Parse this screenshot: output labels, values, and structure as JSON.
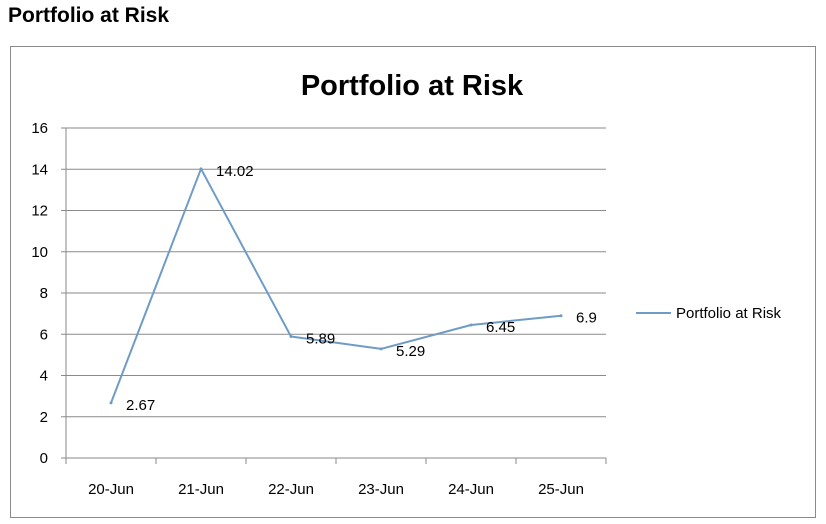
{
  "page": {
    "heading": "Portfolio at Risk"
  },
  "chart_data": {
    "type": "line",
    "title": "Portfolio at Risk",
    "xlabel": "",
    "ylabel": "",
    "categories": [
      "20-Jun",
      "21-Jun",
      "22-Jun",
      "23-Jun",
      "24-Jun",
      "25-Jun"
    ],
    "series": [
      {
        "name": "Portfolio at Risk",
        "values": [
          2.67,
          14.02,
          5.89,
          5.29,
          6.45,
          6.9
        ],
        "labels": [
          "2.67",
          "14.02",
          "5.89",
          "5.29",
          "6.45",
          "6.9"
        ],
        "color": "#6f9cc7"
      }
    ],
    "ylim": [
      0,
      16
    ],
    "yticks": [
      0,
      2,
      4,
      6,
      8,
      10,
      12,
      14,
      16
    ],
    "ytick_labels": [
      "0",
      "2",
      "4",
      "6",
      "8",
      "10",
      "12",
      "14",
      "16"
    ],
    "grid": true,
    "gridline_color": "#8a8a8a",
    "legend_position": "right"
  }
}
